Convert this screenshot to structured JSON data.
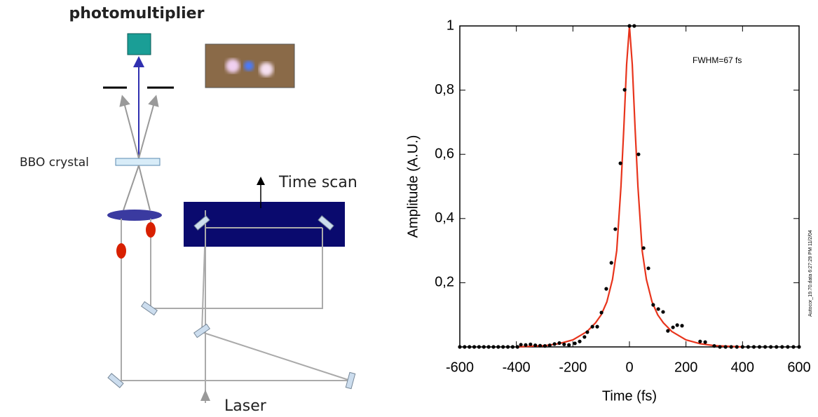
{
  "diagram": {
    "labels": {
      "photomultiplier": "photomultiplier",
      "crystal": "BBO crystal",
      "scan": "Time scan",
      "laser": "Laser"
    }
  },
  "chart_data": {
    "type": "scatter",
    "xlabel": "Time (fs)",
    "ylabel": "Amplitude (A.U.)",
    "annotation": "FWHM=67 fs",
    "side_note": "Autocor_19.70.data 6:27:29 PM 11/2/04",
    "xlim": [
      -600,
      600
    ],
    "ylim": [
      0,
      1
    ],
    "xticks": [
      -600,
      -400,
      -200,
      0,
      200,
      400,
      600
    ],
    "yticks": [
      {
        "value": 0.2,
        "label": "0,2"
      },
      {
        "value": 0.4,
        "label": "0,4"
      },
      {
        "value": 0.6,
        "label": "0,6"
      },
      {
        "value": 0.8,
        "label": "0,8"
      },
      1
    ],
    "series": [
      {
        "type": "scatter",
        "color": "#000000",
        "x": [
          -600,
          -583,
          -566,
          -549,
          -532,
          -515,
          -498,
          -481,
          -464,
          -447,
          -430,
          -413,
          -396,
          -384,
          -367,
          -350,
          -333,
          -316,
          -299,
          -282,
          -265,
          -248,
          -231,
          -214,
          -193,
          -176,
          -159,
          -149,
          -131,
          -114,
          -99,
          -82,
          -64,
          -50,
          -32,
          -17,
          0,
          17,
          32,
          50,
          67,
          84,
          102,
          119,
          136,
          154,
          169,
          186,
          250,
          268,
          300,
          320,
          340,
          360,
          380,
          400,
          420,
          440,
          460,
          480,
          500,
          520,
          540,
          560,
          580,
          600
        ],
        "values": [
          0,
          0,
          0,
          0,
          0,
          0,
          0,
          0,
          0,
          0,
          0,
          0,
          0,
          0.007,
          0.006,
          0.008,
          0.005,
          0.004,
          0.003,
          0.005,
          0.009,
          0.012,
          0.008,
          0.006,
          0.011,
          0.017,
          0.031,
          0.046,
          0.063,
          0.063,
          0.107,
          0.181,
          0.262,
          0.367,
          0.572,
          0.801,
          1.0,
          1.0,
          0.6,
          0.308,
          0.245,
          0.131,
          0.118,
          0.109,
          0.05,
          0.061,
          0.068,
          0.066,
          0.017,
          0.015,
          0.003,
          0,
          0,
          0,
          0,
          0,
          0,
          0,
          0,
          0,
          0,
          0,
          0,
          0,
          0,
          0
        ]
      },
      {
        "type": "line",
        "color": "#e8341c",
        "x": [
          -400,
          -300,
          -250,
          -200,
          -150,
          -120,
          -100,
          -80,
          -60,
          -45,
          -30,
          -20,
          -10,
          0,
          10,
          20,
          30,
          45,
          60,
          80,
          100,
          120,
          150,
          200,
          250,
          300,
          400
        ],
        "values": [
          0,
          0.004,
          0.01,
          0.022,
          0.048,
          0.075,
          0.1,
          0.14,
          0.21,
          0.3,
          0.5,
          0.68,
          0.88,
          1.0,
          0.88,
          0.68,
          0.5,
          0.3,
          0.21,
          0.14,
          0.1,
          0.075,
          0.048,
          0.022,
          0.01,
          0.004,
          0
        ]
      }
    ]
  }
}
